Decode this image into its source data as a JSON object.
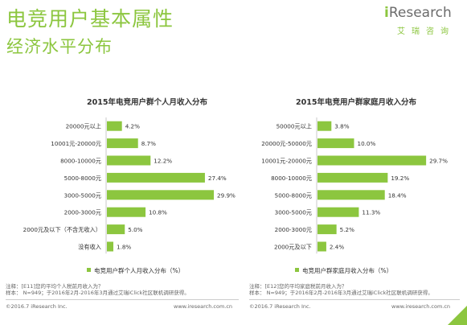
{
  "header": {
    "title": "电竞用户基本属性",
    "subtitle": "经济水平分布",
    "logo_i": "i",
    "logo_text": "Research",
    "logo_sub": "艾瑞咨询"
  },
  "colors": {
    "accent": "#8cc63f",
    "bar": "#8cc63f"
  },
  "chart_data": [
    {
      "type": "bar",
      "orientation": "horizontal",
      "title": "2015年电竞用户群个人月收入分布",
      "categories": [
        "20000元以上",
        "10001元-20000元",
        "8000-10000元",
        "5000-8000元",
        "3000-5000元",
        "2000-3000元",
        "2000元及以下（不含无收入）",
        "没有收入"
      ],
      "series": [
        {
          "name": "电竞用户群个人月收入分布（%）",
          "values": [
            4.2,
            8.7,
            12.2,
            27.4,
            29.9,
            10.8,
            5.0,
            1.8
          ]
        }
      ],
      "value_labels": [
        "4.2%",
        "8.7%",
        "12.2%",
        "27.4%",
        "29.9%",
        "10.8%",
        "5.0%",
        "1.8%"
      ],
      "legend": "bottom",
      "note": "注释：[E11]您的平均个人税前月收入为？",
      "source": "样本： N=949；于2016年2月-2016年3月通过艾瑞iClick社区联机调研获得。"
    },
    {
      "type": "bar",
      "orientation": "horizontal",
      "title": "2015年电竞用户群家庭月收入分布",
      "categories": [
        "50000元以上",
        "20000元-50000元",
        "10001元-20000元",
        "8000-10000元",
        "5000-8000元",
        "3000-5000元",
        "2000-3000元",
        "2000元及以下"
      ],
      "series": [
        {
          "name": "电竞用户群家庭月收入分布（%）",
          "values": [
            3.8,
            10.0,
            29.7,
            19.2,
            18.4,
            11.3,
            5.2,
            2.4
          ]
        }
      ],
      "value_labels": [
        "3.8%",
        "10.0%",
        "29.7%",
        "19.2%",
        "18.4%",
        "11.3%",
        "5.2%",
        "2.4%"
      ],
      "legend": "bottom",
      "note": "注释：[E12]您的平均家庭税前月收入为？",
      "source": "样本： N=949；于2016年2月-2016年3月通过艾瑞iClick社区联机调研获得。"
    }
  ],
  "footer": {
    "left_copyright": "©2016.7 iResearch Inc.",
    "left_url": "www.iresearch.com.cn",
    "right_copyright": "©2016.7 iResearch Inc.",
    "right_url": "www.iresearch.com.cn"
  }
}
